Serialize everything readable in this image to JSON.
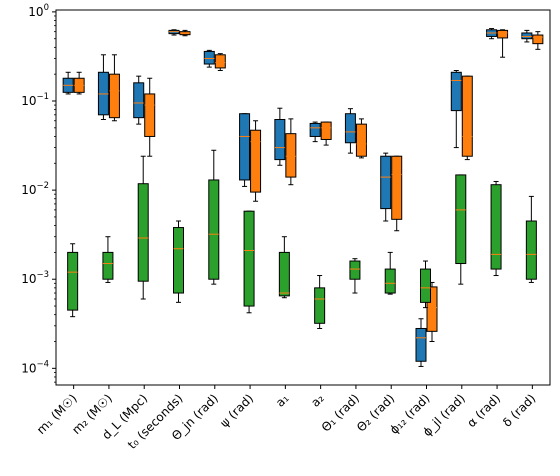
{
  "chart_data": {
    "type": "box",
    "yscale": "log",
    "ylim": [
      6.5e-05,
      1.05
    ],
    "yticks": [
      {
        "value": 0.0001,
        "base": "10",
        "exp": "−4"
      },
      {
        "value": 0.001,
        "base": "10",
        "exp": "−3"
      },
      {
        "value": 0.01,
        "base": "10",
        "exp": "−2"
      },
      {
        "value": 0.1,
        "base": "10",
        "exp": "−1"
      },
      {
        "value": 1,
        "base": "10",
        "exp": "0"
      }
    ],
    "categories": [
      "m₁ (M☉)",
      "m₂ (M☉)",
      "d_L (Mpc)",
      "t₀ (seconds)",
      "Θ_jn (rad)",
      "ψ (rad)",
      "a₁",
      "a₂",
      "Θ₁ (rad)",
      "Θ₂ (rad)",
      "ϕ₁₂ (rad)",
      "ϕ_jl (rad)",
      "α (rad)",
      "δ (rad)"
    ],
    "colors": {
      "blue": "#1f77b4",
      "orange": "#ff7f0e",
      "green": "#2ca02c",
      "median": "#ff7f0e"
    },
    "series": [
      {
        "key": "blue",
        "boxes": [
          {
            "cat": 0,
            "whislo": 0.12,
            "q1": 0.125,
            "med": 0.15,
            "q3": 0.18,
            "whishi": 0.21
          },
          {
            "cat": 1,
            "whislo": 0.062,
            "q1": 0.07,
            "med": 0.12,
            "q3": 0.21,
            "whishi": 0.33
          },
          {
            "cat": 2,
            "whislo": 0.055,
            "q1": 0.065,
            "med": 0.095,
            "q3": 0.16,
            "whishi": 0.19
          },
          {
            "cat": 3,
            "whislo": 0.55,
            "q1": 0.57,
            "med": 0.6,
            "q3": 0.62,
            "whishi": 0.63
          },
          {
            "cat": 4,
            "whislo": 0.24,
            "q1": 0.26,
            "med": 0.3,
            "q3": 0.36,
            "whishi": 0.37
          },
          {
            "cat": 5,
            "whislo": 0.011,
            "q1": 0.013,
            "med": 0.04,
            "q3": 0.072,
            "whishi": 0.072
          },
          {
            "cat": 6,
            "whislo": 0.019,
            "q1": 0.022,
            "med": 0.03,
            "q3": 0.062,
            "whishi": 0.083
          },
          {
            "cat": 7,
            "whislo": 0.035,
            "q1": 0.04,
            "med": 0.05,
            "q3": 0.056,
            "whishi": 0.058
          },
          {
            "cat": 8,
            "whislo": 0.026,
            "q1": 0.034,
            "med": 0.045,
            "q3": 0.072,
            "whishi": 0.082
          },
          {
            "cat": 9,
            "whislo": 0.0045,
            "q1": 0.0062,
            "med": 0.014,
            "q3": 0.024,
            "whishi": 0.026
          },
          {
            "cat": 10,
            "whislo": 0.000105,
            "q1": 0.00012,
            "med": 0.00022,
            "q3": 0.00028,
            "whishi": 0.00036
          },
          {
            "cat": 11,
            "whislo": 0.03,
            "q1": 0.078,
            "med": 0.17,
            "q3": 0.21,
            "whishi": 0.22
          },
          {
            "cat": 12,
            "whislo": 0.5,
            "q1": 0.53,
            "med": 0.58,
            "q3": 0.63,
            "whishi": 0.65
          },
          {
            "cat": 13,
            "whislo": 0.46,
            "q1": 0.5,
            "med": 0.53,
            "q3": 0.58,
            "whishi": 0.62
          }
        ]
      },
      {
        "key": "orange",
        "boxes": [
          {
            "cat": 0,
            "whislo": 0.12,
            "q1": 0.125,
            "med": 0.15,
            "q3": 0.18,
            "whishi": 0.21
          },
          {
            "cat": 1,
            "whislo": 0.06,
            "q1": 0.065,
            "med": 0.13,
            "q3": 0.2,
            "whishi": 0.33
          },
          {
            "cat": 2,
            "whislo": 0.024,
            "q1": 0.04,
            "med": 0.09,
            "q3": 0.12,
            "whishi": 0.18
          },
          {
            "cat": 3,
            "whislo": 0.54,
            "q1": 0.555,
            "med": 0.58,
            "q3": 0.6,
            "whishi": 0.62
          },
          {
            "cat": 4,
            "whislo": 0.22,
            "q1": 0.235,
            "med": 0.27,
            "q3": 0.33,
            "whishi": 0.34
          },
          {
            "cat": 5,
            "whislo": 0.0075,
            "q1": 0.0095,
            "med": 0.035,
            "q3": 0.047,
            "whishi": 0.06
          },
          {
            "cat": 6,
            "whislo": 0.0115,
            "q1": 0.014,
            "med": 0.024,
            "q3": 0.043,
            "whishi": 0.063
          },
          {
            "cat": 7,
            "whislo": 0.032,
            "q1": 0.037,
            "med": 0.05,
            "q3": 0.058,
            "whishi": 0.058
          },
          {
            "cat": 8,
            "whislo": 0.023,
            "q1": 0.024,
            "med": 0.033,
            "q3": 0.055,
            "whishi": 0.063
          },
          {
            "cat": 9,
            "whislo": 0.0035,
            "q1": 0.0047,
            "med": 0.015,
            "q3": 0.024,
            "whishi": 0.024
          },
          {
            "cat": 10,
            "whislo": 0.0002,
            "q1": 0.00026,
            "med": 0.00048,
            "q3": 0.00082,
            "whishi": 0.00092
          },
          {
            "cat": 11,
            "whislo": 0.022,
            "q1": 0.024,
            "med": 0.04,
            "q3": 0.19,
            "whishi": 0.19
          },
          {
            "cat": 12,
            "whislo": 0.31,
            "q1": 0.51,
            "med": 0.58,
            "q3": 0.62,
            "whishi": 0.63
          },
          {
            "cat": 13,
            "whislo": 0.38,
            "q1": 0.44,
            "med": 0.52,
            "q3": 0.55,
            "whishi": 0.6
          }
        ]
      },
      {
        "key": "green",
        "boxes": [
          {
            "cat": 0,
            "whislo": 0.00038,
            "q1": 0.00045,
            "med": 0.0012,
            "q3": 0.002,
            "whishi": 0.0025
          },
          {
            "cat": 1,
            "whislo": 0.00092,
            "q1": 0.001,
            "med": 0.0015,
            "q3": 0.002,
            "whishi": 0.003
          },
          {
            "cat": 2,
            "whislo": 0.0006,
            "q1": 0.00095,
            "med": 0.0029,
            "q3": 0.0118,
            "whishi": 0.024
          },
          {
            "cat": 3,
            "whislo": 0.00055,
            "q1": 0.0007,
            "med": 0.0022,
            "q3": 0.0038,
            "whishi": 0.0045
          },
          {
            "cat": 4,
            "whislo": 0.00088,
            "q1": 0.001,
            "med": 0.0032,
            "q3": 0.013,
            "whishi": 0.028
          },
          {
            "cat": 5,
            "whislo": 0.00042,
            "q1": 0.0005,
            "med": 0.0021,
            "q3": 0.0058,
            "whishi": 0.0058
          },
          {
            "cat": 6,
            "whislo": 0.00062,
            "q1": 0.00065,
            "med": 0.0007,
            "q3": 0.002,
            "whishi": 0.003
          },
          {
            "cat": 7,
            "whislo": 0.00028,
            "q1": 0.00032,
            "med": 0.0006,
            "q3": 0.0008,
            "whishi": 0.0011
          },
          {
            "cat": 8,
            "whislo": 0.0007,
            "q1": 0.001,
            "med": 0.0013,
            "q3": 0.0016,
            "whishi": 0.0017
          },
          {
            "cat": 9,
            "whislo": 0.00068,
            "q1": 0.0007,
            "med": 0.0009,
            "q3": 0.0013,
            "whishi": 0.002
          },
          {
            "cat": 10,
            "whislo": 0.00048,
            "q1": 0.00055,
            "med": 0.0008,
            "q3": 0.0013,
            "whishi": 0.0016
          },
          {
            "cat": 11,
            "whislo": 0.00088,
            "q1": 0.0015,
            "med": 0.006,
            "q3": 0.0148,
            "whishi": 0.0148
          },
          {
            "cat": 12,
            "whislo": 0.0011,
            "q1": 0.0013,
            "med": 0.0019,
            "q3": 0.0115,
            "whishi": 0.0125
          },
          {
            "cat": 13,
            "whislo": 0.00092,
            "q1": 0.001,
            "med": 0.0019,
            "q3": 0.0045,
            "whishi": 0.0085
          }
        ]
      }
    ]
  }
}
